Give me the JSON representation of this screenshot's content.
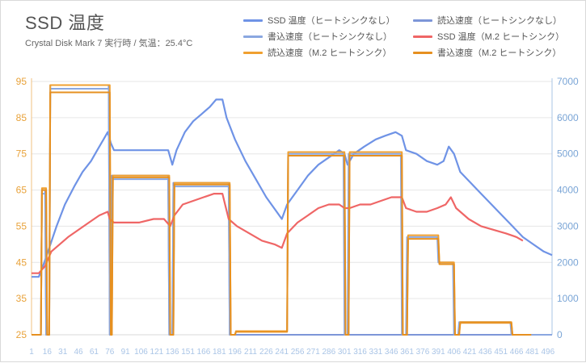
{
  "header": {
    "title": "SSD 温度",
    "subtitle": "Crystal Disk Mark 7 実行時  /  気温：25.4°C"
  },
  "colors": {
    "temp_no_heatsink": "#6f93e6",
    "read_no_heatsink": "#7d96d8",
    "write_no_heatsink": "#8aa7e0",
    "temp_m2_heatsink": "#ef6666",
    "read_m2_heatsink": "#f0a030",
    "write_m2_heatsink": "#e69020"
  },
  "chart_data": {
    "type": "line",
    "title": "SSD 温度",
    "subtitle": "Crystal Disk Mark 7 実行時  /  気温：25.4°C",
    "y_left_ticks": [
      "95",
      "85",
      "75",
      "65",
      "55",
      "45",
      "35",
      "25"
    ],
    "y_right_ticks": [
      "7000",
      "6000",
      "5000",
      "4000",
      "3000",
      "2000",
      "1000",
      "0"
    ],
    "x_ticks": [
      "1",
      "16",
      "31",
      "46",
      "61",
      "76",
      "91",
      "106",
      "121",
      "136",
      "151",
      "166",
      "181",
      "196",
      "211",
      "226",
      "241",
      "256",
      "271",
      "286",
      "301",
      "316",
      "331",
      "346",
      "361",
      "376",
      "391",
      "406",
      "421",
      "436",
      "451",
      "466",
      "481",
      "496"
    ],
    "ylim_left": [
      25,
      95
    ],
    "ylim_right": [
      0,
      7000
    ],
    "xlim": [
      1,
      500
    ],
    "legend_position": "top-right",
    "grid": "horizontal",
    "series": [
      {
        "name": "SSD 温度（ヒートシンクなし）",
        "axis": "left",
        "color": "#6f93e6",
        "points": [
          [
            1,
            41
          ],
          [
            8,
            41
          ],
          [
            12,
            44
          ],
          [
            18,
            49
          ],
          [
            25,
            55
          ],
          [
            33,
            61
          ],
          [
            42,
            66
          ],
          [
            50,
            70
          ],
          [
            58,
            73
          ],
          [
            64,
            76
          ],
          [
            70,
            79
          ],
          [
            74,
            81
          ],
          [
            77,
            78
          ],
          [
            80,
            76
          ],
          [
            84,
            76
          ],
          [
            100,
            76
          ],
          [
            120,
            76
          ],
          [
            132,
            76
          ],
          [
            136,
            72
          ],
          [
            140,
            76
          ],
          [
            148,
            81
          ],
          [
            156,
            84
          ],
          [
            164,
            86
          ],
          [
            172,
            88
          ],
          [
            178,
            90
          ],
          [
            184,
            90
          ],
          [
            188,
            85
          ],
          [
            196,
            79
          ],
          [
            206,
            73
          ],
          [
            216,
            68
          ],
          [
            226,
            63
          ],
          [
            236,
            59
          ],
          [
            241,
            57
          ],
          [
            246,
            61
          ],
          [
            256,
            65
          ],
          [
            266,
            69
          ],
          [
            276,
            72
          ],
          [
            286,
            74
          ],
          [
            296,
            76
          ],
          [
            301,
            75
          ],
          [
            304,
            72
          ],
          [
            310,
            75
          ],
          [
            320,
            77
          ],
          [
            331,
            79
          ],
          [
            340,
            80
          ],
          [
            350,
            81
          ],
          [
            356,
            80
          ],
          [
            360,
            76
          ],
          [
            370,
            75
          ],
          [
            380,
            73
          ],
          [
            390,
            72
          ],
          [
            396,
            73
          ],
          [
            401,
            77
          ],
          [
            406,
            75
          ],
          [
            412,
            70
          ],
          [
            422,
            67
          ],
          [
            432,
            64
          ],
          [
            442,
            61
          ],
          [
            452,
            58
          ],
          [
            462,
            55
          ],
          [
            472,
            52
          ],
          [
            482,
            50
          ],
          [
            492,
            48
          ],
          [
            500,
            47
          ]
        ]
      },
      {
        "name": "読込速度（ヒートシンクなし）",
        "axis": "right",
        "color": "#7d96d8",
        "points": [
          [
            1,
            0
          ],
          [
            10,
            0
          ],
          [
            11,
            4000
          ],
          [
            14,
            4000
          ],
          [
            15,
            0
          ],
          [
            18,
            0
          ],
          [
            19,
            6900
          ],
          [
            75,
            6900
          ],
          [
            76,
            0
          ],
          [
            77,
            0
          ],
          [
            78,
            4400
          ],
          [
            132,
            4400
          ],
          [
            133,
            0
          ],
          [
            136,
            0
          ],
          [
            137,
            4200
          ],
          [
            190,
            4200
          ],
          [
            191,
            0
          ],
          [
            500,
            0
          ]
        ]
      },
      {
        "name": "書込速度（ヒートシンクなし）",
        "axis": "right",
        "color": "#8aa7e0",
        "points": [
          [
            1,
            0
          ],
          [
            10,
            0
          ],
          [
            11,
            3900
          ],
          [
            14,
            3900
          ],
          [
            15,
            0
          ],
          [
            18,
            0
          ],
          [
            19,
            6800
          ],
          [
            75,
            6800
          ],
          [
            76,
            0
          ],
          [
            77,
            0
          ],
          [
            78,
            4300
          ],
          [
            132,
            4300
          ],
          [
            133,
            0
          ],
          [
            136,
            0
          ],
          [
            137,
            4100
          ],
          [
            190,
            4100
          ],
          [
            191,
            0
          ],
          [
            196,
            0
          ],
          [
            197,
            100
          ],
          [
            246,
            100
          ],
          [
            247,
            5000
          ],
          [
            300,
            5000
          ],
          [
            301,
            0
          ],
          [
            304,
            0
          ],
          [
            305,
            5000
          ],
          [
            355,
            5000
          ],
          [
            356,
            0
          ],
          [
            360,
            0
          ],
          [
            361,
            2700
          ],
          [
            390,
            2700
          ],
          [
            391,
            2000
          ],
          [
            405,
            2000
          ],
          [
            406,
            0
          ],
          [
            410,
            0
          ],
          [
            411,
            350
          ],
          [
            460,
            350
          ],
          [
            461,
            0
          ],
          [
            500,
            0
          ]
        ]
      },
      {
        "name": "SSD 温度（M.2 ヒートシンク）",
        "axis": "left",
        "color": "#ef6666",
        "points": [
          [
            1,
            42
          ],
          [
            8,
            42
          ],
          [
            14,
            44
          ],
          [
            20,
            48
          ],
          [
            28,
            50
          ],
          [
            36,
            52
          ],
          [
            46,
            54
          ],
          [
            56,
            56
          ],
          [
            66,
            58
          ],
          [
            74,
            59
          ],
          [
            76,
            57
          ],
          [
            80,
            56
          ],
          [
            90,
            56
          ],
          [
            104,
            56
          ],
          [
            118,
            57
          ],
          [
            128,
            57
          ],
          [
            134,
            55
          ],
          [
            138,
            58
          ],
          [
            146,
            61
          ],
          [
            156,
            62
          ],
          [
            166,
            63
          ],
          [
            176,
            64
          ],
          [
            184,
            64
          ],
          [
            190,
            57
          ],
          [
            198,
            55
          ],
          [
            210,
            53
          ],
          [
            222,
            51
          ],
          [
            234,
            50
          ],
          [
            241,
            49
          ],
          [
            246,
            53
          ],
          [
            256,
            56
          ],
          [
            266,
            58
          ],
          [
            276,
            60
          ],
          [
            286,
            61
          ],
          [
            296,
            61
          ],
          [
            301,
            60
          ],
          [
            306,
            60
          ],
          [
            316,
            61
          ],
          [
            326,
            61
          ],
          [
            336,
            62
          ],
          [
            346,
            63
          ],
          [
            356,
            63
          ],
          [
            360,
            60
          ],
          [
            370,
            59
          ],
          [
            380,
            59
          ],
          [
            390,
            60
          ],
          [
            398,
            61
          ],
          [
            403,
            63
          ],
          [
            408,
            60
          ],
          [
            420,
            57
          ],
          [
            432,
            55
          ],
          [
            444,
            54
          ],
          [
            456,
            53
          ],
          [
            466,
            52
          ],
          [
            472,
            51
          ]
        ]
      },
      {
        "name": "読込速度（M.2 ヒートシンク）",
        "axis": "right",
        "color": "#f0a030",
        "points": [
          [
            1,
            0
          ],
          [
            10,
            0
          ],
          [
            11,
            4050
          ],
          [
            15,
            4050
          ],
          [
            16,
            0
          ],
          [
            18,
            0
          ],
          [
            19,
            6900
          ],
          [
            76,
            6900
          ],
          [
            77,
            0
          ],
          [
            78,
            0
          ],
          [
            79,
            4400
          ],
          [
            133,
            4400
          ],
          [
            134,
            0
          ],
          [
            137,
            0
          ],
          [
            138,
            4200
          ],
          [
            191,
            4200
          ],
          [
            192,
            0
          ],
          [
            196,
            0
          ],
          [
            197,
            100
          ],
          [
            246,
            100
          ],
          [
            247,
            5050
          ],
          [
            301,
            5050
          ],
          [
            302,
            0
          ],
          [
            305,
            0
          ],
          [
            306,
            5050
          ],
          [
            356,
            5050
          ],
          [
            357,
            0
          ],
          [
            361,
            0
          ],
          [
            362,
            2750
          ],
          [
            391,
            2750
          ],
          [
            392,
            2000
          ],
          [
            406,
            2000
          ],
          [
            407,
            0
          ],
          [
            411,
            0
          ],
          [
            412,
            350
          ],
          [
            461,
            350
          ],
          [
            462,
            0
          ],
          [
            480,
            0
          ]
        ]
      },
      {
        "name": "書込速度（M.2 ヒートシンク）",
        "axis": "right",
        "color": "#e69020",
        "points": [
          [
            1,
            0
          ],
          [
            10,
            0
          ],
          [
            11,
            4000
          ],
          [
            15,
            4000
          ],
          [
            16,
            0
          ],
          [
            18,
            0
          ],
          [
            19,
            6700
          ],
          [
            76,
            6700
          ],
          [
            77,
            0
          ],
          [
            78,
            0
          ],
          [
            79,
            4350
          ],
          [
            133,
            4350
          ],
          [
            134,
            0
          ],
          [
            137,
            0
          ],
          [
            138,
            4150
          ],
          [
            191,
            4150
          ],
          [
            192,
            0
          ],
          [
            196,
            0
          ],
          [
            197,
            80
          ],
          [
            246,
            80
          ],
          [
            247,
            4950
          ],
          [
            301,
            4950
          ],
          [
            302,
            0
          ],
          [
            305,
            0
          ],
          [
            306,
            4950
          ],
          [
            356,
            4950
          ],
          [
            357,
            0
          ],
          [
            361,
            0
          ],
          [
            362,
            2650
          ],
          [
            391,
            2650
          ],
          [
            392,
            1950
          ],
          [
            406,
            1950
          ],
          [
            407,
            0
          ],
          [
            411,
            0
          ],
          [
            412,
            330
          ],
          [
            461,
            330
          ],
          [
            462,
            0
          ],
          [
            480,
            0
          ]
        ]
      }
    ]
  }
}
